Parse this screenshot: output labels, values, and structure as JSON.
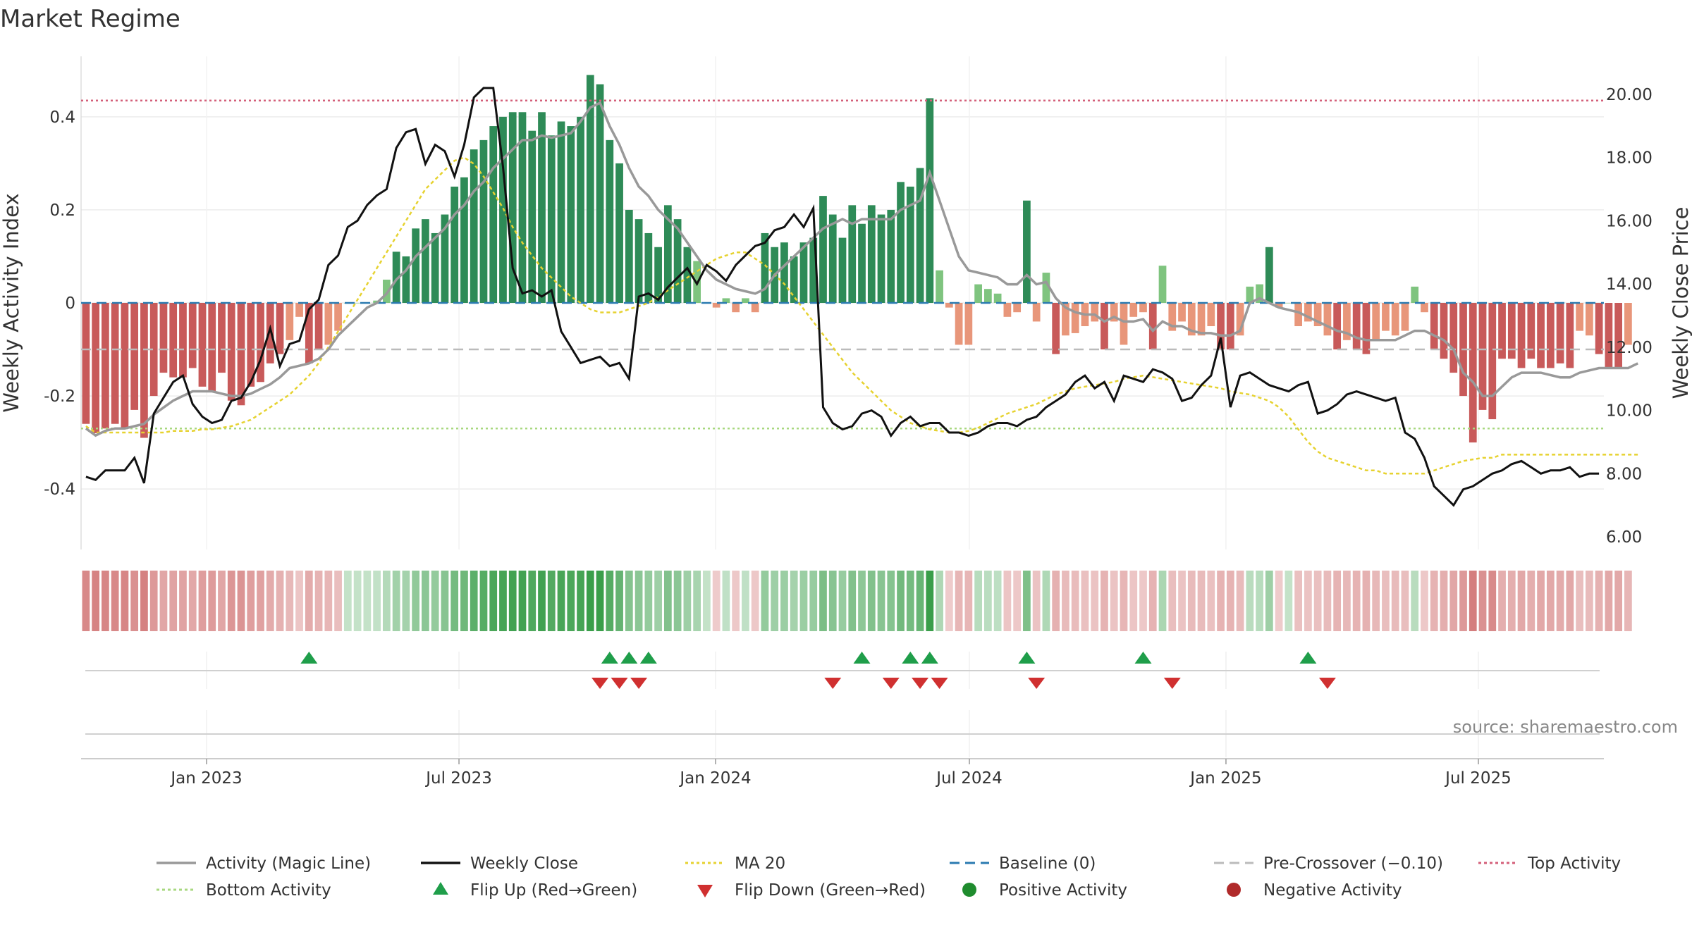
{
  "title": "Market Regime",
  "source_text": "source: sharemaestro.com",
  "colors": {
    "strong_green": "#2e8b57",
    "light_green": "#7fc47f",
    "strong_red": "#c85a5a",
    "light_red": "#e8967a",
    "magic_line": "#999999",
    "weekly_close": "#111111",
    "ma20": "#e6d230",
    "baseline": "#2a7ab0",
    "pre_crossover": "#bbbbbb",
    "top_activity": "#d4607a",
    "bottom_activity": "#a8d880",
    "flip_up": "#1f9e4a",
    "flip_down": "#d03030",
    "positive_activity": "#1f8c2e",
    "negative_activity": "#b02a2a"
  },
  "chart_data": {
    "type": "bar",
    "title": "Market Regime",
    "xlabel": "",
    "ylabel": "Weekly Activity Index",
    "y2label": "Weekly Close Price",
    "ylim": [
      -0.53,
      0.53
    ],
    "y2lim": [
      5.6,
      21.2
    ],
    "x_start": "2022-10-03",
    "x_end": "2025-09-29",
    "weeks": 157,
    "x_ticks": [
      {
        "label": "Jan 2023",
        "date": "2023-01-01"
      },
      {
        "label": "Jul 2023",
        "date": "2023-07-01"
      },
      {
        "label": "Jan 2024",
        "date": "2024-01-01"
      },
      {
        "label": "Jul 2024",
        "date": "2024-07-01"
      },
      {
        "label": "Jan 2025",
        "date": "2025-01-01"
      },
      {
        "label": "Jul 2025",
        "date": "2025-07-01"
      }
    ],
    "y_ticks": [
      {
        "label": "-0.4",
        "value": -0.4
      },
      {
        "label": "-0.2",
        "value": -0.2
      },
      {
        "label": "0",
        "value": 0
      },
      {
        "label": "0.2",
        "value": 0.2
      },
      {
        "label": "0.4",
        "value": 0.4
      }
    ],
    "y2_ticks": [
      {
        "label": "6.00",
        "value": 6
      },
      {
        "label": "8.00",
        "value": 8
      },
      {
        "label": "10.00",
        "value": 10
      },
      {
        "label": "12.00",
        "value": 12
      },
      {
        "label": "14.00",
        "value": 14
      },
      {
        "label": "16.00",
        "value": 16
      },
      {
        "label": "18.00",
        "value": 18
      },
      {
        "label": "20.00",
        "value": 20
      }
    ],
    "reference_lines": {
      "baseline": 0,
      "pre_crossover": -0.1,
      "top_activity": 0.435,
      "bottom_activity": -0.27
    },
    "activity": [
      -0.26,
      -0.28,
      -0.27,
      -0.26,
      -0.27,
      -0.23,
      -0.29,
      -0.2,
      -0.15,
      -0.16,
      -0.16,
      -0.14,
      -0.18,
      -0.19,
      -0.15,
      -0.21,
      -0.22,
      -0.18,
      -0.17,
      -0.13,
      -0.11,
      -0.08,
      -0.03,
      -0.13,
      -0.1,
      -0.09,
      -0.06,
      0.0,
      0.0,
      0.0,
      0.005,
      0.05,
      0.11,
      0.1,
      0.16,
      0.18,
      0.15,
      0.19,
      0.25,
      0.27,
      0.33,
      0.35,
      0.38,
      0.4,
      0.41,
      0.41,
      0.37,
      0.41,
      0.36,
      0.39,
      0.38,
      0.4,
      0.49,
      0.47,
      0.35,
      0.3,
      0.2,
      0.18,
      0.15,
      0.12,
      0.21,
      0.18,
      0.12,
      0.09,
      0.0,
      -0.01,
      0.01,
      -0.02,
      0.01,
      -0.02,
      0.15,
      0.12,
      0.13,
      0.1,
      0.13,
      0.14,
      0.23,
      0.19,
      0.14,
      0.21,
      0.17,
      0.21,
      0.19,
      0.2,
      0.26,
      0.25,
      0.29,
      0.44,
      0.07,
      -0.01,
      -0.09,
      -0.09,
      0.04,
      0.03,
      0.02,
      -0.03,
      -0.02,
      0.22,
      -0.04,
      0.065,
      -0.11,
      -0.07,
      -0.065,
      -0.05,
      -0.04,
      -0.1,
      -0.04,
      -0.09,
      -0.03,
      -0.02,
      -0.1,
      0.08,
      -0.06,
      -0.04,
      -0.07,
      -0.07,
      -0.05,
      -0.1,
      -0.1,
      -0.07,
      0.035,
      0.04,
      0.12,
      -0.01,
      0.0,
      -0.05,
      -0.04,
      -0.05,
      -0.07,
      -0.1,
      -0.08,
      -0.1,
      -0.11,
      -0.08,
      -0.06,
      -0.07,
      -0.06,
      0.035,
      -0.02,
      -0.1,
      -0.12,
      -0.15,
      -0.2,
      -0.3,
      -0.23,
      -0.25,
      -0.12,
      -0.12,
      -0.14,
      -0.12,
      -0.14,
      -0.14,
      -0.13,
      -0.14,
      -0.06,
      -0.07,
      -0.11,
      -0.14,
      -0.14,
      -0.09
    ],
    "magic_line": [
      -0.27,
      -0.285,
      -0.275,
      -0.27,
      -0.27,
      -0.265,
      -0.26,
      -0.24,
      -0.225,
      -0.21,
      -0.2,
      -0.19,
      -0.19,
      -0.19,
      -0.195,
      -0.2,
      -0.2,
      -0.195,
      -0.185,
      -0.175,
      -0.16,
      -0.14,
      -0.135,
      -0.13,
      -0.12,
      -0.1,
      -0.07,
      -0.05,
      -0.03,
      -0.01,
      0.0,
      0.02,
      0.05,
      0.07,
      0.1,
      0.12,
      0.14,
      0.16,
      0.19,
      0.21,
      0.24,
      0.26,
      0.29,
      0.31,
      0.33,
      0.35,
      0.35,
      0.36,
      0.355,
      0.36,
      0.365,
      0.39,
      0.42,
      0.43,
      0.38,
      0.34,
      0.29,
      0.25,
      0.23,
      0.2,
      0.18,
      0.16,
      0.13,
      0.1,
      0.07,
      0.05,
      0.04,
      0.03,
      0.025,
      0.02,
      0.03,
      0.06,
      0.08,
      0.1,
      0.12,
      0.14,
      0.16,
      0.17,
      0.18,
      0.17,
      0.18,
      0.18,
      0.18,
      0.18,
      0.2,
      0.21,
      0.22,
      0.28,
      0.22,
      0.16,
      0.1,
      0.07,
      0.065,
      0.06,
      0.055,
      0.04,
      0.04,
      0.06,
      0.04,
      0.045,
      0.01,
      -0.01,
      -0.02,
      -0.025,
      -0.025,
      -0.04,
      -0.03,
      -0.04,
      -0.04,
      -0.035,
      -0.06,
      -0.04,
      -0.05,
      -0.05,
      -0.06,
      -0.065,
      -0.065,
      -0.07,
      -0.07,
      -0.06,
      0.0,
      0.01,
      0.0,
      -0.01,
      -0.015,
      -0.02,
      -0.03,
      -0.04,
      -0.05,
      -0.06,
      -0.065,
      -0.075,
      -0.08,
      -0.08,
      -0.08,
      -0.08,
      -0.07,
      -0.06,
      -0.06,
      -0.07,
      -0.08,
      -0.1,
      -0.15,
      -0.17,
      -0.2,
      -0.2,
      -0.18,
      -0.16,
      -0.15,
      -0.15,
      -0.15,
      -0.155,
      -0.16,
      -0.16,
      -0.15,
      -0.145,
      -0.14,
      -0.14,
      -0.14,
      -0.14,
      -0.13
    ],
    "weekly_close": [
      7.9,
      7.8,
      8.1,
      8.1,
      8.1,
      8.5,
      7.7,
      9.9,
      10.4,
      10.9,
      11.1,
      10.2,
      9.8,
      9.6,
      9.7,
      10.3,
      10.4,
      10.9,
      11.6,
      12.6,
      11.4,
      12.1,
      12.2,
      13.2,
      13.5,
      14.6,
      14.9,
      15.8,
      16.0,
      16.5,
      16.8,
      17.0,
      18.3,
      18.8,
      18.9,
      17.8,
      18.4,
      18.2,
      17.4,
      18.4,
      19.9,
      20.2,
      20.2,
      17.7,
      14.5,
      13.7,
      13.8,
      13.6,
      13.8,
      12.5,
      12.0,
      11.5,
      11.6,
      11.7,
      11.4,
      11.5,
      11.0,
      13.6,
      13.7,
      13.5,
      13.9,
      14.2,
      14.5,
      14.0,
      14.6,
      14.4,
      14.1,
      14.6,
      14.9,
      15.2,
      15.3,
      15.7,
      15.8,
      16.2,
      15.8,
      16.4,
      10.1,
      9.6,
      9.4,
      9.5,
      9.9,
      10.0,
      9.8,
      9.2,
      9.6,
      9.8,
      9.5,
      9.6,
      9.6,
      9.3,
      9.3,
      9.2,
      9.3,
      9.5,
      9.6,
      9.6,
      9.5,
      9.7,
      9.8,
      10.1,
      10.3,
      10.5,
      10.9,
      11.1,
      10.7,
      10.9,
      10.3,
      11.1,
      11.0,
      10.9,
      11.3,
      11.2,
      11.0,
      10.3,
      10.4,
      10.8,
      11.1,
      12.3,
      10.1,
      11.1,
      11.2,
      11.0,
      10.8,
      10.7,
      10.6,
      10.8,
      10.9,
      9.9,
      10.0,
      10.2,
      10.5,
      10.6,
      10.5,
      10.4,
      10.3,
      10.4,
      9.3,
      9.1,
      8.5,
      7.6,
      7.3,
      7.0,
      7.5,
      7.6,
      7.8,
      8.0,
      8.1,
      8.3,
      8.4,
      8.2,
      8.0,
      8.1,
      8.1,
      8.2,
      7.9,
      8.0,
      8.0
    ],
    "ma20": [
      9.5,
      9.3,
      9.3,
      9.3,
      9.3,
      9.3,
      9.3,
      9.3,
      9.3,
      9.35,
      9.35,
      9.35,
      9.4,
      9.4,
      9.45,
      9.5,
      9.6,
      9.7,
      9.9,
      10.1,
      10.3,
      10.5,
      10.8,
      11.1,
      11.5,
      12.0,
      12.5,
      13.0,
      13.5,
      14.0,
      14.5,
      15.0,
      15.5,
      16.0,
      16.5,
      17.0,
      17.3,
      17.6,
      17.9,
      18.0,
      17.8,
      17.4,
      16.9,
      16.4,
      15.8,
      15.3,
      14.9,
      14.5,
      14.2,
      13.9,
      13.6,
      13.4,
      13.2,
      13.1,
      13.1,
      13.1,
      13.2,
      13.3,
      13.4,
      13.6,
      13.8,
      14.0,
      14.2,
      14.4,
      14.6,
      14.8,
      14.9,
      15.0,
      15.0,
      14.8,
      14.6,
      14.3,
      14.0,
      13.6,
      13.2,
      12.8,
      12.4,
      12.0,
      11.6,
      11.2,
      10.9,
      10.6,
      10.3,
      10.0,
      9.8,
      9.6,
      9.5,
      9.4,
      9.35,
      9.3,
      9.3,
      9.35,
      9.45,
      9.6,
      9.75,
      9.9,
      10.0,
      10.1,
      10.2,
      10.35,
      10.5,
      10.6,
      10.7,
      10.75,
      10.8,
      10.85,
      10.9,
      11.0,
      11.05,
      11.1,
      11.05,
      11.0,
      10.95,
      10.9,
      10.85,
      10.8,
      10.75,
      10.7,
      10.6,
      10.55,
      10.5,
      10.4,
      10.3,
      10.1,
      9.8,
      9.4,
      9.0,
      8.7,
      8.5,
      8.4,
      8.3,
      8.2,
      8.1,
      8.1,
      8.0,
      8.0,
      8.0,
      8.0,
      8.0,
      8.1,
      8.2,
      8.3,
      8.4,
      8.45,
      8.5,
      8.5,
      8.6,
      8.6,
      8.6,
      8.6,
      8.6,
      8.6,
      8.6,
      8.6,
      8.6,
      8.6,
      8.6,
      8.6,
      8.6,
      8.6,
      8.6
    ],
    "flip_up_weeks": [
      23,
      54,
      56,
      58,
      80,
      85,
      87,
      97,
      109,
      126
    ],
    "flip_down_weeks": [
      53,
      55,
      57,
      77,
      83,
      86,
      88,
      98,
      112,
      128
    ],
    "legend": [
      {
        "label": "Activity (Magic Line)",
        "kind": "line",
        "color": "#999999"
      },
      {
        "label": "Weekly Close",
        "kind": "line",
        "color": "#111111"
      },
      {
        "label": "MA 20",
        "kind": "dotted",
        "color": "#e6d230"
      },
      {
        "label": "Baseline (0)",
        "kind": "dashed",
        "color": "#2a7ab0"
      },
      {
        "label": "Pre-Crossover (−0.10)",
        "kind": "dashed",
        "color": "#bbbbbb"
      },
      {
        "label": "Top Activity",
        "kind": "dotted",
        "color": "#d4607a"
      },
      {
        "label": "Bottom Activity",
        "kind": "dotted",
        "color": "#a8d880"
      },
      {
        "label": "Flip Up (Red→Green)",
        "kind": "triangle-up",
        "color": "#1f9e4a"
      },
      {
        "label": "Flip Down (Green→Red)",
        "kind": "triangle-down",
        "color": "#d03030"
      },
      {
        "label": "Positive Activity",
        "kind": "circle",
        "color": "#1f8c2e"
      },
      {
        "label": "Negative Activity",
        "kind": "circle",
        "color": "#b02a2a"
      }
    ]
  }
}
